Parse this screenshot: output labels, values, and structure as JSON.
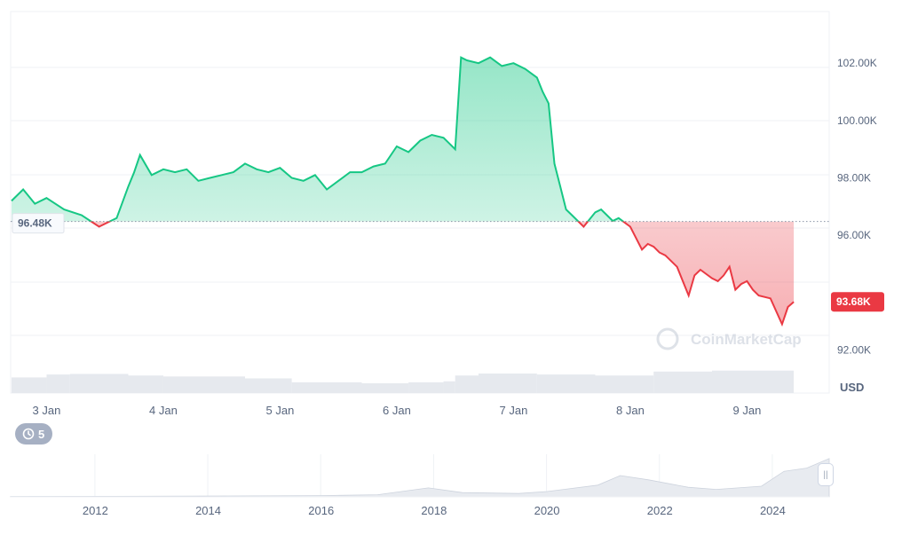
{
  "chart_data": {
    "type": "area",
    "currency_label": "USD",
    "y_ticks": [
      "102.00K",
      "100.00K",
      "98.00K",
      "96.00K",
      "92.00K"
    ],
    "y_tick_values": [
      102000,
      100000,
      98000,
      96000,
      92000
    ],
    "ylim": [
      90500,
      103800
    ],
    "x_ticks": [
      "3 Jan",
      "4 Jan",
      "5 Jan",
      "6 Jan",
      "7 Jan",
      "8 Jan",
      "9 Jan"
    ],
    "baseline_label": "96.48K",
    "baseline_value": 96480,
    "current_label": "93.68K",
    "current_value": 93680,
    "grid": true,
    "colors": {
      "up": "#16c784",
      "down": "#ea3943",
      "volume": "#e6e9ee",
      "grid": "#eff2f5"
    },
    "price_series": {
      "x_days": [
        0,
        0.1,
        0.2,
        0.3,
        0.45,
        0.6,
        0.75,
        0.85,
        0.9,
        1.0,
        1.05,
        1.1,
        1.2,
        1.3,
        1.4,
        1.5,
        1.6,
        1.7,
        1.8,
        1.9,
        2.0,
        2.1,
        2.2,
        2.3,
        2.4,
        2.5,
        2.6,
        2.7,
        2.8,
        2.9,
        3.0,
        3.1,
        3.2,
        3.3,
        3.4,
        3.5,
        3.6,
        3.7,
        3.75,
        3.8,
        3.85,
        3.9,
        4.0,
        4.1,
        4.2,
        4.3,
        4.4,
        4.5,
        4.55,
        4.6,
        4.65,
        4.7,
        4.75,
        4.8,
        4.9,
        5.0,
        5.05,
        5.1,
        5.15,
        5.2,
        5.3,
        5.4,
        5.45,
        5.5,
        5.55,
        5.6,
        5.7,
        5.75,
        5.8,
        5.85,
        5.9,
        6.0,
        6.05,
        6.1,
        6.15,
        6.2,
        6.25,
        6.3,
        6.35,
        6.4,
        6.5,
        6.6,
        6.65,
        6.7
      ],
      "values": [
        97200,
        97600,
        97100,
        97300,
        96900,
        96700,
        96300,
        96500,
        96600,
        97700,
        98200,
        98800,
        98100,
        98300,
        98200,
        98300,
        97900,
        98000,
        98100,
        98200,
        98500,
        98300,
        98200,
        98350,
        98000,
        97900,
        98100,
        97600,
        97900,
        98200,
        98200,
        98400,
        98500,
        99100,
        98900,
        99300,
        99500,
        99400,
        99200,
        99000,
        102200,
        102100,
        102000,
        102200,
        101900,
        102000,
        101800,
        101500,
        101000,
        100600,
        98500,
        97700,
        96900,
        96700,
        96300,
        96800,
        96900,
        96700,
        96500,
        96600,
        96300,
        95500,
        95700,
        95600,
        95400,
        95300,
        94900,
        94400,
        93900,
        94600,
        94800,
        94500,
        94400,
        94600,
        94900,
        94100,
        94300,
        94400,
        94100,
        93900,
        93800,
        92900,
        93500,
        93680
      ]
    },
    "volume_series": {
      "x_days": [
        0,
        0.3,
        0.5,
        1.0,
        1.3,
        2.0,
        2.4,
        3.0,
        3.4,
        3.7,
        3.8,
        4.0,
        4.5,
        5.0,
        5.5,
        6.0,
        6.7
      ],
      "values": [
        0.8,
        0.95,
        0.98,
        0.9,
        0.85,
        0.75,
        0.55,
        0.5,
        0.55,
        0.6,
        0.9,
        1.0,
        0.95,
        0.9,
        1.1,
        1.15,
        1.3
      ]
    },
    "navigator": {
      "x_ticks": [
        "2012",
        "2014",
        "2016",
        "2018",
        "2020",
        "2022",
        "2024"
      ],
      "x_tick_years": [
        2012,
        2014,
        2016,
        2018,
        2020,
        2022,
        2024
      ],
      "years": [
        2010.5,
        2013,
        2016,
        2017,
        2017.9,
        2018.5,
        2019.5,
        2020.0,
        2020.9,
        2021.3,
        2021.8,
        2022.5,
        2023.0,
        2023.8,
        2024.2,
        2024.6,
        2025.0
      ],
      "values": [
        0.2,
        0.3,
        0.6,
        1.0,
        4.2,
        2.0,
        1.6,
        2.5,
        5.5,
        10.0,
        8.0,
        4.5,
        3.5,
        5.0,
        12.0,
        13.5,
        18.0
      ]
    }
  },
  "ui": {
    "history_count": "5",
    "watermark": "CoinMarketCap"
  }
}
